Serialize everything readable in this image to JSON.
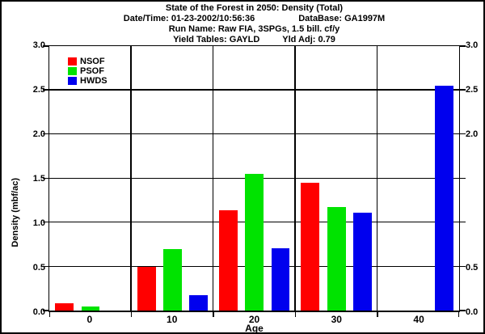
{
  "header": {
    "line1": "State of the Forest in 2050: Density (Total)",
    "line2a": "Date/Time: 01-23-2002/10:56:36",
    "line2b": "DataBase: GA1997M",
    "line3": "Run Name: Raw FIA, 3SPGs, 1.5 bill. cf/y",
    "line4a": "Yield Tables: GAYLD",
    "line4b": "Yld Adj: 0.79"
  },
  "chart_data": {
    "type": "bar",
    "title": "State of the Forest in 2050: Density (Total)",
    "xlabel": "Age",
    "ylabel": "Density (mbf/ac)",
    "categories": [
      "0",
      "10",
      "20",
      "30",
      "40"
    ],
    "series": [
      {
        "name": "NSOF",
        "color": "#ff0000",
        "values": [
          0.08,
          0.5,
          1.14,
          1.45,
          0
        ]
      },
      {
        "name": "PSOF",
        "color": "#00e300",
        "values": [
          0.05,
          0.7,
          1.55,
          1.17,
          0
        ]
      },
      {
        "name": "HWDS",
        "color": "#0000ee",
        "values": [
          0,
          0.17,
          0.71,
          1.11,
          2.55
        ]
      }
    ],
    "ylim": [
      0,
      3.0
    ],
    "ytick_step": 0.5,
    "yticks_left": [
      "0.0",
      "0.5",
      "1.0",
      "1.5",
      "2.0",
      "2.5",
      "3.0"
    ],
    "yticks_right": [
      "0.0",
      "0.5",
      "2.0",
      "2.5",
      "3.0"
    ],
    "yticks_right_values": [
      0,
      0.5,
      2.0,
      2.5,
      3.0
    ],
    "grid": true,
    "legend_position": "top-left-inside",
    "frame_border_color": "#000000",
    "background_color": "#ffffff"
  }
}
